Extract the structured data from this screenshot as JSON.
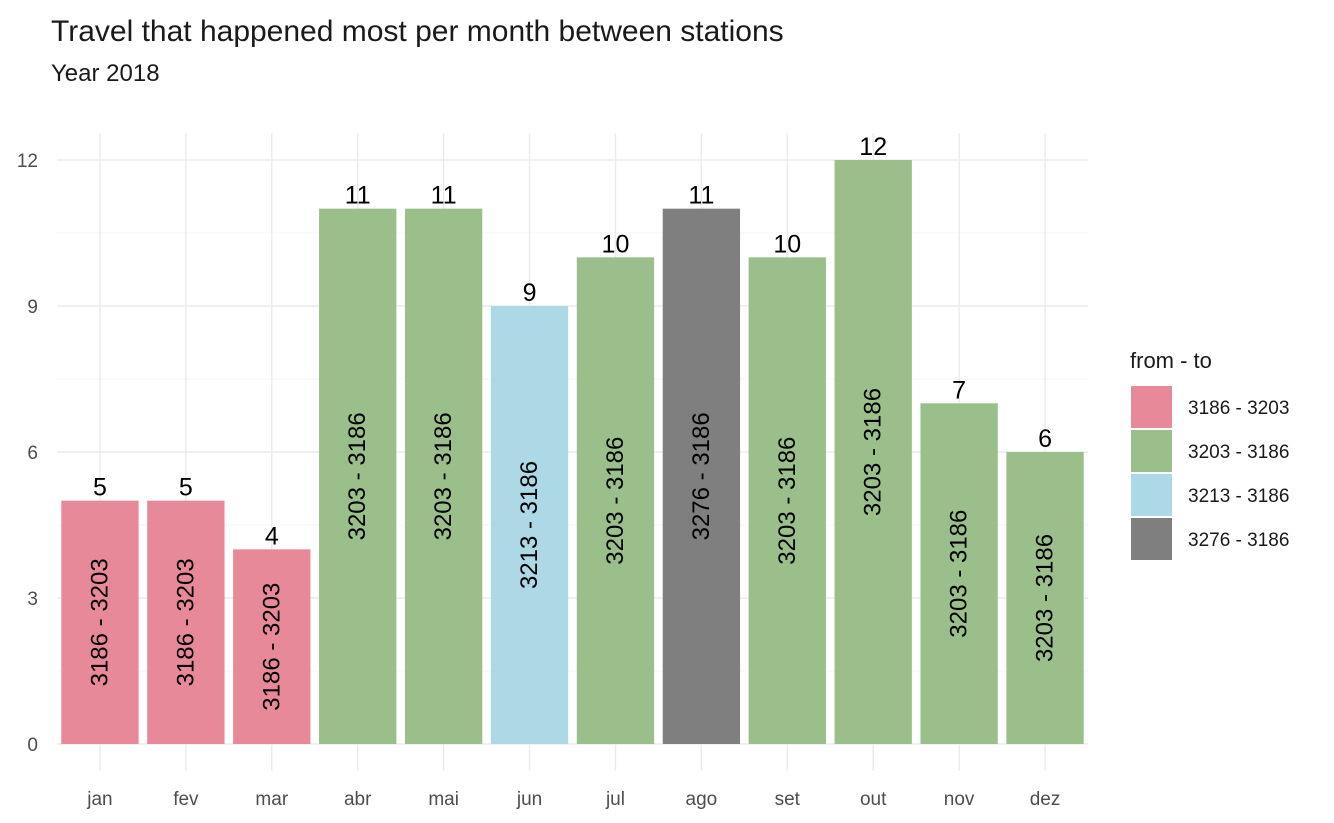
{
  "chart_data": {
    "type": "bar",
    "title": "Travel that happened most per month between stations",
    "subtitle": "Year 2018",
    "categories": [
      "jan",
      "fev",
      "mar",
      "abr",
      "mai",
      "jun",
      "jul",
      "ago",
      "set",
      "out",
      "nov",
      "dez"
    ],
    "values": [
      5,
      5,
      4,
      11,
      11,
      9,
      10,
      11,
      10,
      12,
      7,
      6
    ],
    "bar_labels": [
      "3186 - 3203",
      "3186 - 3203",
      "3186 - 3203",
      "3203 - 3186",
      "3203 - 3186",
      "3213 - 3186",
      "3203 - 3186",
      "3276 - 3186",
      "3203 - 3186",
      "3203 - 3186",
      "3203 - 3186",
      "3203 - 3186"
    ],
    "ylim": [
      0,
      12.6
    ],
    "yticks": [
      0,
      3,
      6,
      9,
      12
    ],
    "grid": true,
    "legend": {
      "title": "from - to",
      "placement": "right",
      "entries": [
        {
          "label": "3186 - 3203",
          "color": "#e8899a"
        },
        {
          "label": "3203 - 3186",
          "color": "#9bbf8b"
        },
        {
          "label": "3213 - 3186",
          "color": "#add8e6"
        },
        {
          "label": "3276 - 3186",
          "color": "#7f7f7f"
        }
      ]
    }
  }
}
